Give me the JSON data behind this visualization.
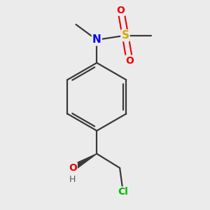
{
  "background_color": "#ebebeb",
  "bond_color": "#3a3a3a",
  "atom_colors": {
    "N": "#0000ee",
    "S": "#ccaa00",
    "O": "#ee0000",
    "O_OH": "#ee0000",
    "H": "#555555",
    "Cl": "#00bb00",
    "C": "#3a3a3a"
  },
  "font_size_N": 11,
  "font_size_S": 11,
  "font_size_O": 10,
  "font_size_Cl": 10,
  "font_size_H": 9
}
